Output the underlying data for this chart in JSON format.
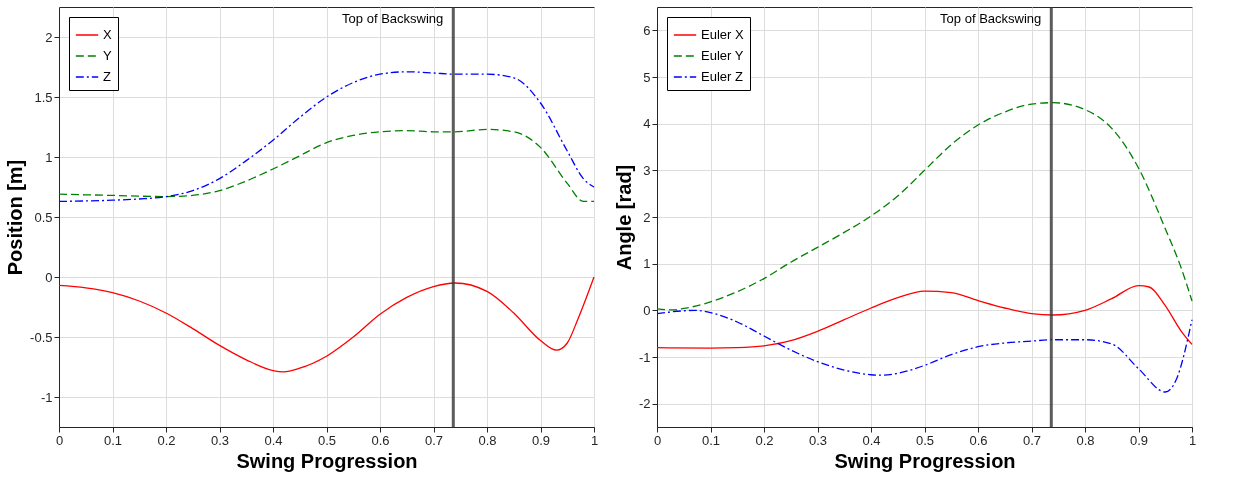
{
  "chart_data": [
    {
      "type": "line",
      "xlabel": "Swing Progression",
      "ylabel": "Position [m]",
      "xlim": [
        0,
        1
      ],
      "xticks": [
        0,
        0.1,
        0.2,
        0.3,
        0.4,
        0.5,
        0.6,
        0.7,
        0.8,
        0.9,
        1
      ],
      "ylim": [
        -1.25,
        2.25
      ],
      "yticks": [
        -1,
        -0.5,
        0,
        0.5,
        1,
        1.5,
        2
      ],
      "grid": true,
      "legend": "top left",
      "ref_lines": [
        {
          "axis": "x",
          "value": 0.737,
          "label": "Top of Backswing",
          "color": "#333333"
        }
      ],
      "series": [
        {
          "name": "X",
          "color": "#ff0000",
          "line_style": "solid",
          "x": [
            0,
            0.05,
            0.1,
            0.15,
            0.2,
            0.25,
            0.3,
            0.35,
            0.4,
            0.42,
            0.45,
            0.5,
            0.55,
            0.6,
            0.65,
            0.7,
            0.74,
            0.8,
            0.85,
            0.9,
            0.93,
            0.95,
            0.97,
            1.0
          ],
          "values": [
            -0.07,
            -0.09,
            -0.13,
            -0.2,
            -0.3,
            -0.43,
            -0.57,
            -0.69,
            -0.78,
            -0.79,
            -0.76,
            -0.66,
            -0.5,
            -0.31,
            -0.17,
            -0.08,
            -0.05,
            -0.12,
            -0.3,
            -0.53,
            -0.61,
            -0.55,
            -0.35,
            0.0
          ]
        },
        {
          "name": "Y",
          "color": "#008000",
          "line_style": "dashed",
          "x": [
            0,
            0.1,
            0.2,
            0.25,
            0.3,
            0.35,
            0.4,
            0.45,
            0.5,
            0.55,
            0.6,
            0.65,
            0.7,
            0.74,
            0.8,
            0.85,
            0.9,
            0.95,
            0.98,
            1.0
          ],
          "values": [
            0.69,
            0.68,
            0.67,
            0.68,
            0.72,
            0.8,
            0.9,
            1.01,
            1.12,
            1.18,
            1.21,
            1.22,
            1.21,
            1.21,
            1.23,
            1.21,
            1.08,
            0.78,
            0.63,
            0.63
          ]
        },
        {
          "name": "Z",
          "color": "#0000ff",
          "line_style": "dashdot",
          "x": [
            0,
            0.1,
            0.15,
            0.2,
            0.25,
            0.3,
            0.35,
            0.4,
            0.45,
            0.5,
            0.55,
            0.6,
            0.65,
            0.7,
            0.74,
            0.8,
            0.85,
            0.9,
            0.95,
            0.98,
            1.0
          ],
          "values": [
            0.63,
            0.64,
            0.65,
            0.67,
            0.72,
            0.82,
            0.97,
            1.14,
            1.33,
            1.5,
            1.62,
            1.69,
            1.71,
            1.7,
            1.69,
            1.69,
            1.66,
            1.45,
            1.05,
            0.82,
            0.75
          ]
        }
      ]
    },
    {
      "type": "line",
      "xlabel": "Swing Progression",
      "ylabel": "Angle [rad]",
      "xlim": [
        0,
        1
      ],
      "xticks": [
        0,
        0.1,
        0.2,
        0.3,
        0.4,
        0.5,
        0.6,
        0.7,
        0.8,
        0.9,
        1
      ],
      "ylim": [
        -2.5,
        6.5
      ],
      "yticks": [
        -2,
        -1,
        0,
        1,
        2,
        3,
        4,
        5,
        6
      ],
      "grid": true,
      "legend": "top left",
      "ref_lines": [
        {
          "axis": "x",
          "value": 0.737,
          "label": "Top of Backswing",
          "color": "#333333"
        }
      ],
      "series": [
        {
          "name": "Euler X",
          "color": "#ff0000",
          "line_style": "solid",
          "x": [
            0,
            0.1,
            0.15,
            0.2,
            0.25,
            0.3,
            0.35,
            0.4,
            0.45,
            0.5,
            0.55,
            0.6,
            0.65,
            0.7,
            0.74,
            0.8,
            0.85,
            0.9,
            0.92,
            0.95,
            0.98,
            1.0
          ],
          "values": [
            -0.8,
            -0.81,
            -0.8,
            -0.76,
            -0.65,
            -0.45,
            -0.2,
            0.05,
            0.27,
            0.41,
            0.38,
            0.21,
            0.05,
            -0.07,
            -0.1,
            0.0,
            0.25,
            0.53,
            0.5,
            0.1,
            -0.45,
            -0.73
          ]
        },
        {
          "name": "Euler Y",
          "color": "#008000",
          "line_style": "dashed",
          "x": [
            0,
            0.03,
            0.05,
            0.1,
            0.15,
            0.2,
            0.25,
            0.3,
            0.35,
            0.4,
            0.45,
            0.5,
            0.55,
            0.6,
            0.65,
            0.7,
            0.74,
            0.8,
            0.85,
            0.9,
            0.95,
            0.98,
            1.0
          ],
          "values": [
            0.03,
            0.01,
            0.04,
            0.18,
            0.4,
            0.68,
            1.03,
            1.35,
            1.67,
            2.02,
            2.45,
            3.0,
            3.55,
            3.97,
            4.25,
            4.42,
            4.45,
            4.3,
            3.9,
            3.05,
            1.75,
            0.9,
            0.2
          ]
        },
        {
          "name": "Euler Z",
          "color": "#0000ff",
          "line_style": "dashdot",
          "x": [
            0,
            0.05,
            0.07,
            0.1,
            0.15,
            0.2,
            0.25,
            0.3,
            0.35,
            0.4,
            0.42,
            0.45,
            0.5,
            0.55,
            0.6,
            0.65,
            0.7,
            0.74,
            0.8,
            0.85,
            0.9,
            0.95,
            0.97,
            1.0
          ],
          "values": [
            -0.07,
            -0.01,
            0.0,
            -0.05,
            -0.25,
            -0.55,
            -0.85,
            -1.1,
            -1.28,
            -1.38,
            -1.39,
            -1.35,
            -1.18,
            -0.95,
            -0.78,
            -0.7,
            -0.66,
            -0.63,
            -0.63,
            -0.72,
            -1.25,
            -1.75,
            -1.5,
            -0.2
          ]
        }
      ]
    }
  ]
}
